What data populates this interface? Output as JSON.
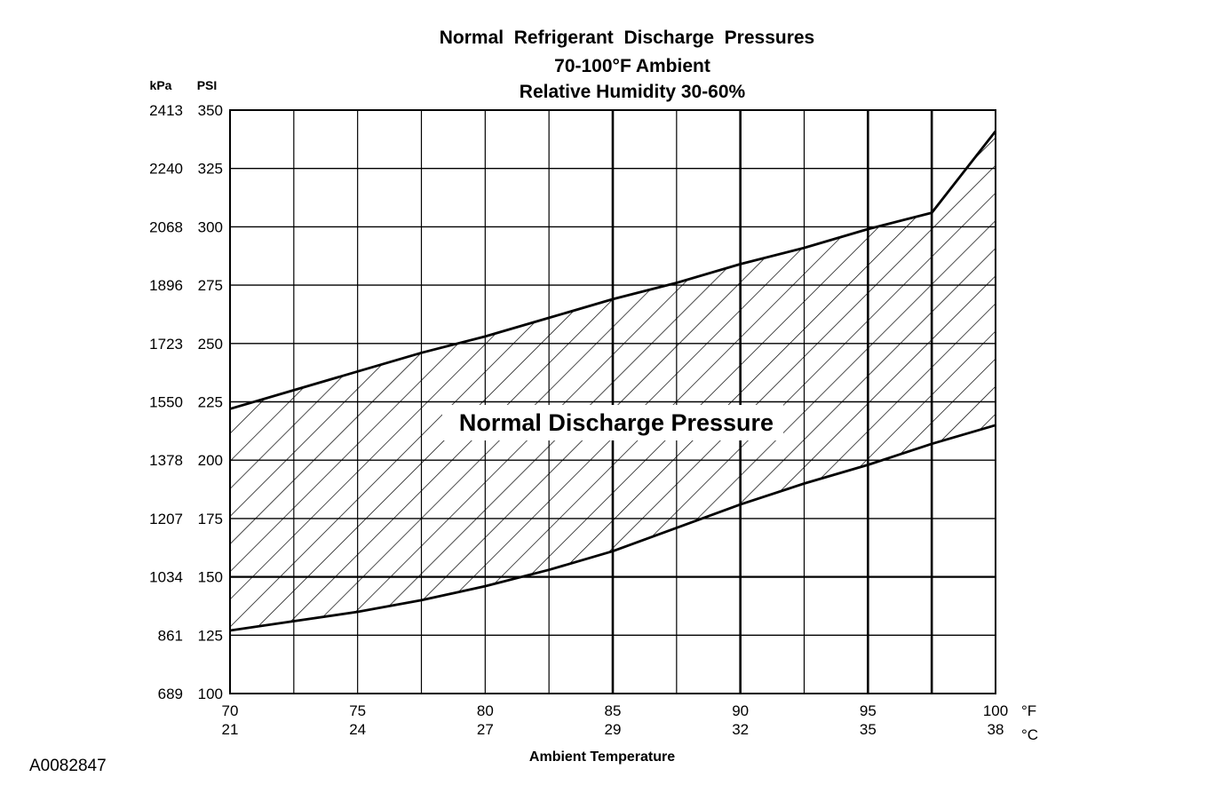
{
  "chart_data": {
    "type": "area",
    "title": "Normal  Refrigerant  Discharge  Pressures",
    "subtitle_lines": [
      "70-100°F Ambient",
      "Relative Humidity 30-60%"
    ],
    "xlabel": "Ambient Temperature",
    "x_unit_primary": "°F",
    "x_unit_secondary": "°C",
    "y_unit_primary": "PSI",
    "y_unit_secondary": "kPa",
    "xlim": [
      70,
      100
    ],
    "ylim": [
      100,
      350
    ],
    "x_ticks": [
      {
        "f": "70",
        "c": "21"
      },
      {
        "f": "75",
        "c": "24"
      },
      {
        "f": "80",
        "c": "27"
      },
      {
        "f": "85",
        "c": "29"
      },
      {
        "f": "90",
        "c": "32"
      },
      {
        "f": "95",
        "c": "35"
      },
      {
        "f": "100",
        "c": "38"
      }
    ],
    "y_ticks": [
      {
        "psi": "350",
        "kpa": "2413"
      },
      {
        "psi": "325",
        "kpa": "2240"
      },
      {
        "psi": "300",
        "kpa": "2068"
      },
      {
        "psi": "275",
        "kpa": "1896"
      },
      {
        "psi": "250",
        "kpa": "1723"
      },
      {
        "psi": "225",
        "kpa": "1550"
      },
      {
        "psi": "200",
        "kpa": "1378"
      },
      {
        "psi": "175",
        "kpa": "1207"
      },
      {
        "psi": "150",
        "kpa": "1034"
      },
      {
        "psi": "125",
        "kpa": "861"
      },
      {
        "psi": "100",
        "kpa": "689"
      }
    ],
    "grid": true,
    "x_gridlines": [
      72.5,
      75,
      77.5,
      80,
      82.5,
      85,
      87.5,
      90,
      92.5,
      95,
      97.5
    ],
    "band": {
      "label": "Normal Discharge Pressure",
      "upper": {
        "x": [
          70,
          72.5,
          75,
          77.5,
          80,
          82.5,
          85,
          87.5,
          90,
          92.5,
          95,
          97.5,
          100
        ],
        "y": [
          222,
          230,
          238,
          246,
          253,
          261,
          269,
          276,
          284,
          291,
          299,
          306,
          341
        ]
      },
      "lower": {
        "x": [
          70,
          72.5,
          75,
          77.5,
          80,
          82.5,
          85,
          87.5,
          90,
          92.5,
          95,
          97.5,
          100
        ],
        "y": [
          127,
          131,
          135,
          140,
          146,
          153,
          161,
          171,
          181,
          190,
          198,
          207,
          215
        ]
      }
    }
  },
  "figure_code": "A0082847"
}
